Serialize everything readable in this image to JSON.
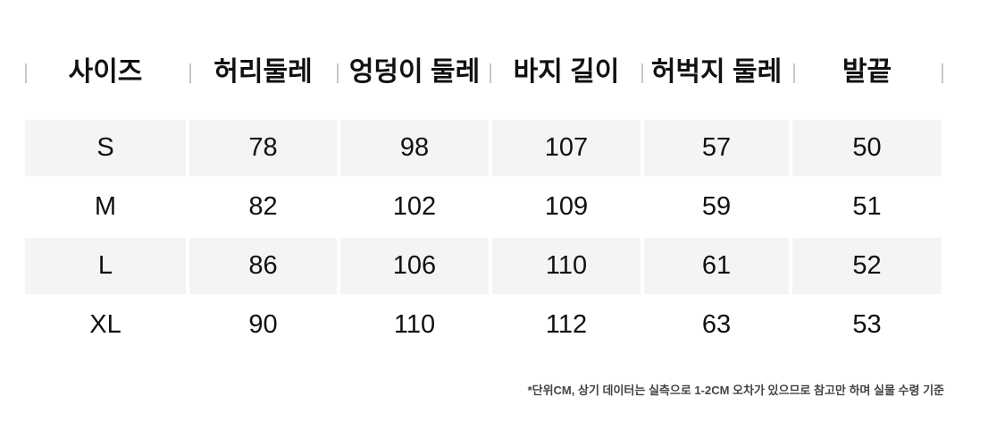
{
  "columns": [
    "사이즈",
    "허리둘레",
    "엉덩이 둘레",
    "바지 길이",
    "허벅지 둘레",
    "발끝"
  ],
  "rows": [
    [
      "S",
      "78",
      "98",
      "107",
      "57",
      "50"
    ],
    [
      "M",
      "82",
      "102",
      "109",
      "59",
      "51"
    ],
    [
      "L",
      "86",
      "106",
      "110",
      "61",
      "52"
    ],
    [
      "XL",
      "90",
      "110",
      "112",
      "63",
      "53"
    ]
  ],
  "note": "*단위CM, 상기 데이터는 실측으로 1-2CM 오차가 있으므로 참고만 하며 실물 수령 기준",
  "colors": {
    "row_shade": "#f4f4f4",
    "separator": "#c8c8c8",
    "text": "#111111"
  }
}
